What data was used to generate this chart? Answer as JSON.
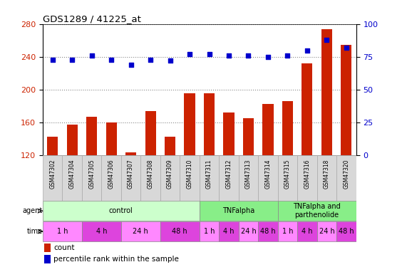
{
  "title": "GDS1289 / 41225_at",
  "samples": [
    "GSM47302",
    "GSM47304",
    "GSM47305",
    "GSM47306",
    "GSM47307",
    "GSM47308",
    "GSM47309",
    "GSM47310",
    "GSM47311",
    "GSM47312",
    "GSM47313",
    "GSM47314",
    "GSM47315",
    "GSM47316",
    "GSM47318",
    "GSM47320"
  ],
  "counts": [
    143,
    158,
    167,
    160,
    124,
    174,
    143,
    196,
    196,
    172,
    165,
    183,
    186,
    232,
    274,
    255
  ],
  "percentiles": [
    73,
    73,
    76,
    73,
    69,
    73,
    72,
    77,
    77,
    76,
    76,
    75,
    76,
    80,
    88,
    82
  ],
  "ylim_left": [
    120,
    280
  ],
  "ylim_right": [
    0,
    100
  ],
  "yticks_left": [
    120,
    160,
    200,
    240,
    280
  ],
  "yticks_right": [
    0,
    25,
    50,
    75,
    100
  ],
  "bar_color": "#cc2200",
  "dot_color": "#0000cc",
  "grid_color": "#888888",
  "bg_color": "#d8d8d8",
  "plot_bg": "#ffffff",
  "agent_configs": [
    [
      0,
      8,
      "#ccffcc",
      "control"
    ],
    [
      8,
      12,
      "#88ee88",
      "TNFalpha"
    ],
    [
      12,
      16,
      "#88ee88",
      "TNFalpha and\nparthenolide"
    ]
  ],
  "time_configs": [
    [
      0,
      2,
      "#ff88ff",
      "1 h"
    ],
    [
      2,
      4,
      "#dd44dd",
      "4 h"
    ],
    [
      4,
      6,
      "#ff88ff",
      "24 h"
    ],
    [
      6,
      8,
      "#dd44dd",
      "48 h"
    ],
    [
      8,
      9,
      "#ff88ff",
      "1 h"
    ],
    [
      9,
      10,
      "#dd44dd",
      "4 h"
    ],
    [
      10,
      11,
      "#ff88ff",
      "24 h"
    ],
    [
      11,
      12,
      "#dd44dd",
      "48 h"
    ],
    [
      12,
      13,
      "#ff88ff",
      "1 h"
    ],
    [
      13,
      14,
      "#dd44dd",
      "4 h"
    ],
    [
      14,
      15,
      "#ff88ff",
      "24 h"
    ],
    [
      15,
      16,
      "#dd44dd",
      "48 h"
    ]
  ]
}
